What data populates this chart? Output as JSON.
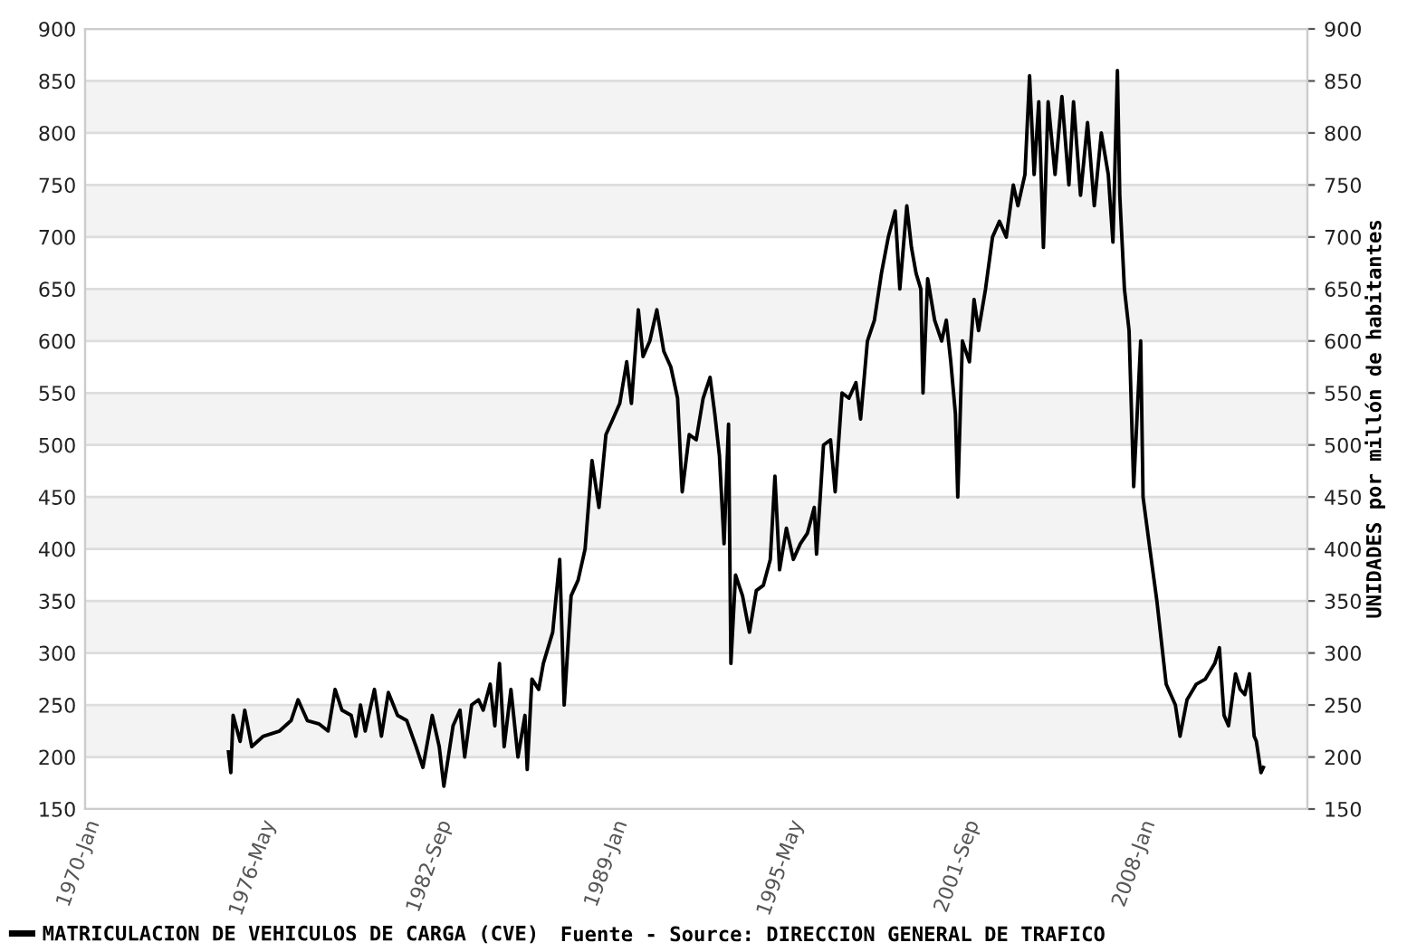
{
  "chart_data": {
    "type": "line",
    "y2label": "UNIDADES por millón de habitantes",
    "annotations": [
      "Fuente - Source: DIRECCION GENERAL DE TRAFICO"
    ],
    "xlim": [
      "1970-01",
      "2014-01"
    ],
    "xticks": [
      {
        "value": "1970-01",
        "label": "1970-Jan"
      },
      {
        "value": "1976-05",
        "label": "1976-May"
      },
      {
        "value": "1982-09",
        "label": "1982-Sep"
      },
      {
        "value": "1989-01",
        "label": "1989-Jan"
      },
      {
        "value": "1995-05",
        "label": "1995-May"
      },
      {
        "value": "2001-09",
        "label": "2001-Sep"
      },
      {
        "value": "2008-01",
        "label": "2008-Jan"
      }
    ],
    "ylim": [
      150,
      900
    ],
    "yticks": [
      150,
      200,
      250,
      300,
      350,
      400,
      450,
      500,
      550,
      600,
      650,
      700,
      750,
      800,
      850,
      900
    ],
    "y2lim": [
      150,
      900
    ],
    "y2ticks": [
      150,
      200,
      250,
      300,
      350,
      400,
      450,
      500,
      550,
      600,
      650,
      700,
      750,
      800,
      850,
      900
    ],
    "grid": "y",
    "legend": "bottom",
    "marker": "none",
    "line_style": "solid",
    "series": [
      {
        "name": "MATRICULACION DE VEHICULOS DE CARGA (CVE)",
        "color": "#000000",
        "x": [
          "1975-03",
          "1975-04",
          "1975-05",
          "1975-08",
          "1975-10",
          "1976-01",
          "1976-06",
          "1977-01",
          "1977-06",
          "1977-09",
          "1978-01",
          "1978-06",
          "1978-10",
          "1979-01",
          "1979-04",
          "1979-08",
          "1979-10",
          "1979-12",
          "1980-02",
          "1980-06",
          "1980-09",
          "1980-12",
          "1981-04",
          "1981-08",
          "1981-12",
          "1982-03",
          "1982-07",
          "1982-10",
          "1982-12",
          "1983-04",
          "1983-07",
          "1983-09",
          "1983-12",
          "1984-03",
          "1984-05",
          "1984-08",
          "1984-10",
          "1984-12",
          "1985-02",
          "1985-05",
          "1985-08",
          "1985-11",
          "1985-12",
          "1986-02",
          "1986-05",
          "1986-07",
          "1986-11",
          "1987-02",
          "1987-04",
          "1987-07",
          "1987-10",
          "1988-01",
          "1988-04",
          "1988-07",
          "1988-10",
          "1989-01",
          "1989-04",
          "1989-07",
          "1989-09",
          "1989-12",
          "1990-02",
          "1990-05",
          "1990-08",
          "1990-11",
          "1991-02",
          "1991-05",
          "1991-07",
          "1991-10",
          "1992-01",
          "1992-04",
          "1992-07",
          "1992-09",
          "1992-11",
          "1993-01",
          "1993-03",
          "1993-04",
          "1993-06",
          "1993-09",
          "1993-12",
          "1994-03",
          "1994-06",
          "1994-09",
          "1994-11",
          "1995-01",
          "1995-04",
          "1995-07",
          "1995-10",
          "1996-01",
          "1996-04",
          "1996-05",
          "1996-08",
          "1996-11",
          "1997-01",
          "1997-04",
          "1997-07",
          "1997-10",
          "1997-12",
          "1998-03",
          "1998-06",
          "1998-09",
          "1998-12",
          "1999-03",
          "1999-05",
          "1999-08",
          "1999-10",
          "1999-12",
          "2000-02",
          "2000-03",
          "2000-05",
          "2000-08",
          "2000-11",
          "2001-01",
          "2001-03",
          "2001-05",
          "2001-06",
          "2001-08",
          "2001-11",
          "2002-01",
          "2002-03",
          "2002-06",
          "2002-09",
          "2002-12",
          "2003-03",
          "2003-06",
          "2003-08",
          "2003-11",
          "2004-01",
          "2004-03",
          "2004-05",
          "2004-07",
          "2004-09",
          "2004-12",
          "2005-03",
          "2005-06",
          "2005-08",
          "2005-11",
          "2006-02",
          "2006-05",
          "2006-08",
          "2006-11",
          "2007-01",
          "2007-03",
          "2007-04",
          "2007-06",
          "2007-08",
          "2007-10",
          "2008-01",
          "2008-02",
          "2008-05",
          "2008-08",
          "2008-12",
          "2009-04",
          "2009-06",
          "2009-09",
          "2010-01",
          "2010-05",
          "2010-09",
          "2010-11",
          "2011-01",
          "2011-03",
          "2011-06",
          "2011-08",
          "2011-10",
          "2011-12",
          "2012-02",
          "2012-03",
          "2012-05",
          "2012-06"
        ],
        "values": [
          205,
          185,
          240,
          215,
          245,
          210,
          220,
          225,
          235,
          255,
          235,
          232,
          225,
          265,
          245,
          240,
          220,
          250,
          225,
          265,
          220,
          262,
          240,
          235,
          210,
          190,
          240,
          210,
          172,
          230,
          245,
          200,
          250,
          255,
          245,
          270,
          230,
          290,
          210,
          265,
          200,
          240,
          188,
          275,
          265,
          290,
          320,
          390,
          250,
          355,
          370,
          400,
          485,
          440,
          510,
          525,
          540,
          580,
          540,
          630,
          585,
          600,
          630,
          590,
          575,
          545,
          455,
          510,
          505,
          545,
          565,
          530,
          490,
          405,
          520,
          290,
          375,
          355,
          320,
          360,
          365,
          390,
          470,
          380,
          420,
          390,
          405,
          415,
          440,
          395,
          500,
          505,
          455,
          550,
          545,
          560,
          525,
          600,
          620,
          665,
          700,
          725,
          650,
          730,
          690,
          665,
          650,
          550,
          660,
          620,
          600,
          620,
          580,
          530,
          450,
          600,
          580,
          640,
          610,
          650,
          700,
          715,
          700,
          750,
          730,
          760,
          855,
          760,
          830,
          690,
          830,
          760,
          835,
          750,
          830,
          740,
          810,
          730,
          800,
          760,
          695,
          860,
          740,
          650,
          610,
          460,
          600,
          450,
          400,
          350,
          270,
          250,
          220,
          255,
          270,
          275,
          290,
          305,
          240,
          230,
          280,
          265,
          260,
          280,
          220,
          215,
          185,
          190
        ]
      }
    ]
  }
}
